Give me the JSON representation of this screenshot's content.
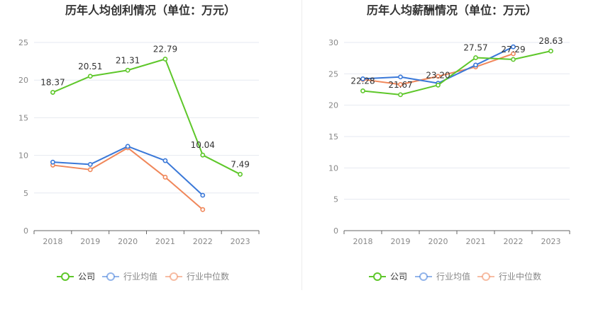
{
  "chart_data": [
    {
      "type": "line",
      "title": "历年人均创利情况（单位：万元）",
      "categories": [
        "2018",
        "2019",
        "2020",
        "2021",
        "2022",
        "2023"
      ],
      "ylim": [
        0,
        25
      ],
      "yticks": [
        0,
        5,
        10,
        15,
        20,
        25
      ],
      "grid": true,
      "legend_position": "bottom",
      "series": [
        {
          "name": "公司",
          "color": "#5ec72a",
          "values": [
            18.37,
            20.51,
            21.31,
            22.79,
            10.04,
            7.49
          ],
          "labels": [
            "18.37",
            "20.51",
            "21.31",
            "22.79",
            "10.04",
            "7.49"
          ]
        },
        {
          "name": "行业均值",
          "color": "#3a78d8",
          "values": [
            9.1,
            8.8,
            11.2,
            9.3,
            4.7,
            null
          ]
        },
        {
          "name": "行业中位数",
          "color": "#f0875a",
          "values": [
            8.7,
            8.1,
            11.0,
            7.1,
            2.8,
            null
          ]
        }
      ]
    },
    {
      "type": "line",
      "title": "历年人均薪酬情况（单位：万元）",
      "categories": [
        "2018",
        "2019",
        "2020",
        "2021",
        "2022",
        "2023"
      ],
      "ylim": [
        0,
        30
      ],
      "yticks": [
        0,
        5,
        10,
        15,
        20,
        25,
        30
      ],
      "grid": true,
      "legend_position": "bottom",
      "series": [
        {
          "name": "公司",
          "color": "#5ec72a",
          "values": [
            22.28,
            21.67,
            23.2,
            27.57,
            27.29,
            28.63
          ],
          "labels": [
            "22.28",
            "21.67",
            "23.20",
            "27.57",
            "27.29",
            "28.63"
          ]
        },
        {
          "name": "行业均值",
          "color": "#3a78d8",
          "values": [
            24.2,
            24.5,
            23.5,
            26.4,
            29.3,
            null
          ]
        },
        {
          "name": "行业中位数",
          "color": "#f0875a",
          "values": [
            24.1,
            23.3,
            24.6,
            26.1,
            28.2,
            null
          ]
        }
      ]
    }
  ]
}
